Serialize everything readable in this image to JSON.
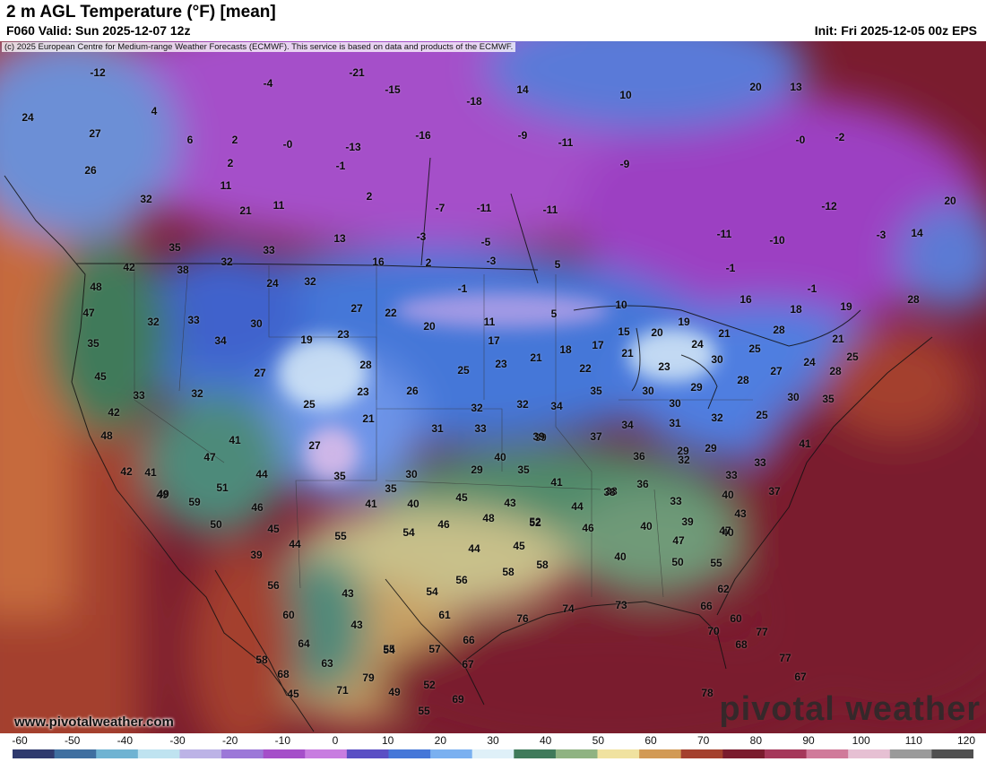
{
  "header": {
    "title": "2 m AGL Temperature (°F) [mean]",
    "valid": "F060 Valid: Sun 2025-12-07 12z",
    "init": "Init: Fri 2025-12-05 00z EPS"
  },
  "copyright": "(c) 2025 European Centre for Medium-range Weather Forecasts (ECMWF). This service is based on data and products of the ECMWF.",
  "branding": {
    "website": "www.pivotalweather.com",
    "logo": "pivotal weather"
  },
  "colorbar": {
    "ticks": [
      "-60",
      "-50",
      "-40",
      "-30",
      "-20",
      "-10",
      "0",
      "10",
      "20",
      "30",
      "40",
      "50",
      "60",
      "70",
      "80",
      "90",
      "100",
      "110",
      "120"
    ],
    "stops": [
      "#2f3a6e",
      "#3f6fa0",
      "#6fb3d2",
      "#bfe3f0",
      "#bcb3e6",
      "#9c78d8",
      "#a54fc9",
      "#c87de0",
      "#5a4fc4",
      "#4577d8",
      "#7ab0f0",
      "#dff0f8",
      "#3f7a5a",
      "#8fb382",
      "#f0e2a0",
      "#d29a55",
      "#a4412e",
      "#7a1c2e",
      "#a5385a",
      "#d07a9a",
      "#e6c0d3",
      "#9a9a9a",
      "#505050"
    ]
  },
  "map_labels": [
    {
      "t": "-12"
    },
    {
      "t": "-21"
    },
    {
      "t": "-4"
    },
    {
      "t": "-15"
    },
    {
      "t": "14"
    },
    {
      "t": "10"
    },
    {
      "t": "20"
    },
    {
      "t": "13"
    },
    {
      "t": "24"
    },
    {
      "t": "4"
    },
    {
      "t": "-18"
    },
    {
      "t": "27"
    },
    {
      "t": "6"
    },
    {
      "t": "2"
    },
    {
      "t": "-0"
    },
    {
      "t": "-13"
    },
    {
      "t": "-16"
    },
    {
      "t": "-9"
    },
    {
      "t": "-11"
    },
    {
      "t": "-0"
    },
    {
      "t": "-2"
    },
    {
      "t": "26"
    },
    {
      "t": "2"
    },
    {
      "t": "-1"
    },
    {
      "t": "-9"
    },
    {
      "t": "11"
    },
    {
      "t": "2"
    },
    {
      "t": "-7"
    },
    {
      "t": "-11"
    },
    {
      "t": "-11"
    },
    {
      "t": "32"
    },
    {
      "t": "21"
    },
    {
      "t": "11"
    },
    {
      "t": "-12"
    },
    {
      "t": "20"
    },
    {
      "t": "35"
    },
    {
      "t": "33"
    },
    {
      "t": "13"
    },
    {
      "t": "-3"
    },
    {
      "t": "-5"
    },
    {
      "t": "-11"
    },
    {
      "t": "-10"
    },
    {
      "t": "-3"
    },
    {
      "t": "14"
    },
    {
      "t": "42"
    },
    {
      "t": "38"
    },
    {
      "t": "32"
    },
    {
      "t": "16"
    },
    {
      "t": "2"
    },
    {
      "t": "-3"
    },
    {
      "t": "5"
    },
    {
      "t": "-1"
    },
    {
      "t": "48"
    },
    {
      "t": "24"
    },
    {
      "t": "32"
    },
    {
      "t": "-1"
    },
    {
      "t": "-1"
    },
    {
      "t": "5"
    },
    {
      "t": "47"
    },
    {
      "t": "32"
    },
    {
      "t": "33"
    },
    {
      "t": "30"
    },
    {
      "t": "27"
    },
    {
      "t": "22"
    },
    {
      "t": "20"
    },
    {
      "t": "11"
    },
    {
      "t": "10"
    },
    {
      "t": "16"
    },
    {
      "t": "18"
    },
    {
      "t": "19"
    },
    {
      "t": "28"
    },
    {
      "t": "35"
    },
    {
      "t": "34"
    },
    {
      "t": "19"
    },
    {
      "t": "23"
    },
    {
      "t": "17"
    },
    {
      "t": "18"
    },
    {
      "t": "17"
    },
    {
      "t": "15"
    },
    {
      "t": "20"
    },
    {
      "t": "19"
    },
    {
      "t": "21"
    },
    {
      "t": "28"
    },
    {
      "t": "21"
    },
    {
      "t": "45"
    },
    {
      "t": "27"
    },
    {
      "t": "28"
    },
    {
      "t": "25"
    },
    {
      "t": "23"
    },
    {
      "t": "21"
    },
    {
      "t": "22"
    },
    {
      "t": "21"
    },
    {
      "t": "23"
    },
    {
      "t": "24"
    },
    {
      "t": "30"
    },
    {
      "t": "25"
    },
    {
      "t": "33"
    },
    {
      "t": "32"
    },
    {
      "t": "23"
    },
    {
      "t": "26"
    },
    {
      "t": "32"
    },
    {
      "t": "32"
    },
    {
      "t": "34"
    },
    {
      "t": "35"
    },
    {
      "t": "30"
    },
    {
      "t": "30"
    },
    {
      "t": "29"
    },
    {
      "t": "28"
    },
    {
      "t": "27"
    },
    {
      "t": "24"
    },
    {
      "t": "28"
    },
    {
      "t": "25"
    },
    {
      "t": "42"
    },
    {
      "t": "25"
    },
    {
      "t": "21"
    },
    {
      "t": "31"
    },
    {
      "t": "33"
    },
    {
      "t": "39"
    },
    {
      "t": "37"
    },
    {
      "t": "34"
    },
    {
      "t": "31"
    },
    {
      "t": "32"
    },
    {
      "t": "25"
    },
    {
      "t": "30"
    },
    {
      "t": "35"
    },
    {
      "t": "48"
    },
    {
      "t": "41"
    },
    {
      "t": "27"
    },
    {
      "t": "41"
    },
    {
      "t": "29"
    },
    {
      "t": "33"
    },
    {
      "t": "47"
    },
    {
      "t": "40"
    },
    {
      "t": "39"
    },
    {
      "t": "36"
    },
    {
      "t": "32"
    },
    {
      "t": "29"
    },
    {
      "t": "33"
    },
    {
      "t": "41"
    },
    {
      "t": "44"
    },
    {
      "t": "30"
    },
    {
      "t": "29"
    },
    {
      "t": "35"
    },
    {
      "t": "41"
    },
    {
      "t": "42"
    },
    {
      "t": "35"
    },
    {
      "t": "40"
    },
    {
      "t": "51"
    },
    {
      "t": "59"
    },
    {
      "t": "49"
    },
    {
      "t": "46"
    },
    {
      "t": "35"
    },
    {
      "t": "45"
    },
    {
      "t": "43"
    },
    {
      "t": "38"
    },
    {
      "t": "36"
    },
    {
      "t": "33"
    },
    {
      "t": "40"
    },
    {
      "t": "37"
    },
    {
      "t": "40"
    },
    {
      "t": "49"
    },
    {
      "t": "50"
    },
    {
      "t": "45"
    },
    {
      "t": "41"
    },
    {
      "t": "46"
    },
    {
      "t": "48"
    },
    {
      "t": "52"
    },
    {
      "t": "46"
    },
    {
      "t": "38"
    },
    {
      "t": "40"
    },
    {
      "t": "39"
    },
    {
      "t": "43"
    },
    {
      "t": "47"
    },
    {
      "t": "44"
    },
    {
      "t": "47"
    },
    {
      "t": "52"
    },
    {
      "t": "44"
    },
    {
      "t": "55"
    },
    {
      "t": "54"
    },
    {
      "t": "44"
    },
    {
      "t": "39"
    },
    {
      "t": "45"
    },
    {
      "t": "58"
    },
    {
      "t": "58"
    },
    {
      "t": "50"
    },
    {
      "t": "55"
    },
    {
      "t": "56"
    },
    {
      "t": "56"
    },
    {
      "t": "60"
    },
    {
      "t": "43"
    },
    {
      "t": "54"
    },
    {
      "t": "40"
    },
    {
      "t": "62"
    },
    {
      "t": "61"
    },
    {
      "t": "76"
    },
    {
      "t": "74"
    },
    {
      "t": "73"
    },
    {
      "t": "66"
    },
    {
      "t": "60"
    },
    {
      "t": "64"
    },
    {
      "t": "43"
    },
    {
      "t": "55"
    },
    {
      "t": "70"
    },
    {
      "t": "77"
    },
    {
      "t": "58"
    },
    {
      "t": "63"
    },
    {
      "t": "54"
    },
    {
      "t": "57"
    },
    {
      "t": "66"
    },
    {
      "t": "68"
    },
    {
      "t": "68"
    },
    {
      "t": "67"
    },
    {
      "t": "77"
    },
    {
      "t": "45"
    },
    {
      "t": "79"
    },
    {
      "t": "67"
    },
    {
      "t": "71"
    },
    {
      "t": "49"
    },
    {
      "t": "52"
    },
    {
      "t": "69"
    },
    {
      "t": "78"
    },
    {
      "t": "55"
    }
  ]
}
